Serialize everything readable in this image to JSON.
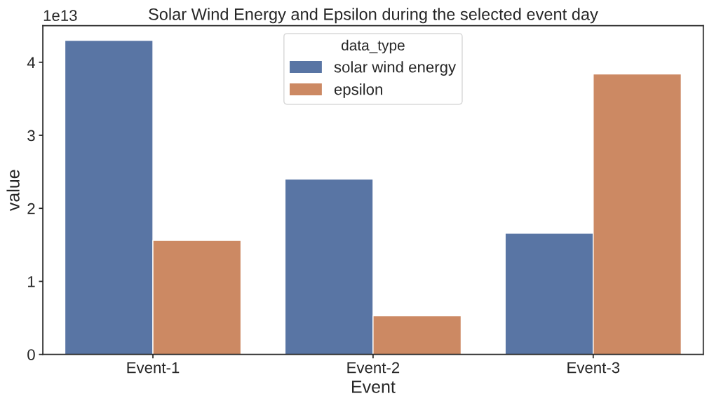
{
  "chart_data": {
    "type": "bar",
    "title": "Solar Wind Energy and Epsilon during the selected event day",
    "xlabel": "Event",
    "ylabel": "value",
    "legend_title": "data_type",
    "categories": [
      "Event-1",
      "Event-2",
      "Event-3"
    ],
    "series": [
      {
        "name": "solar wind energy",
        "color": "#5975a4",
        "values": [
          4.3,
          2.4,
          1.66
        ]
      },
      {
        "name": "epsilon",
        "color": "#cc8963",
        "values": [
          1.56,
          0.53,
          3.84
        ]
      }
    ],
    "ylim": [
      0,
      4.5
    ],
    "yticks": [
      0,
      1,
      2,
      3,
      4
    ],
    "annotations": [
      "1e13"
    ],
    "legend": "top",
    "grid": false
  }
}
